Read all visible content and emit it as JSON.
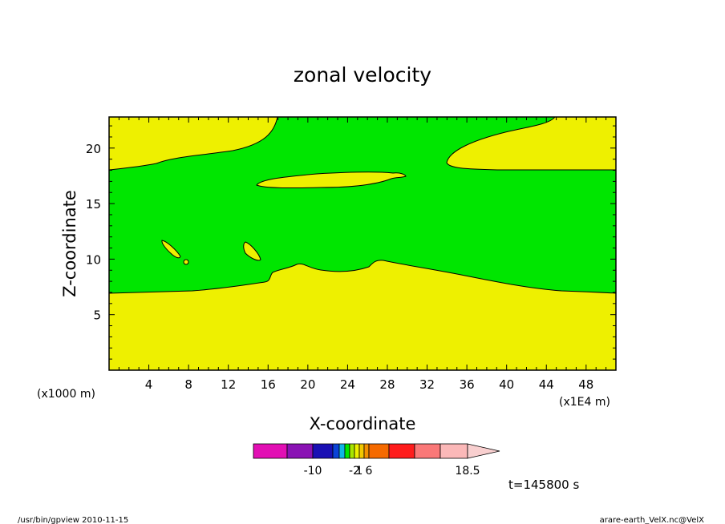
{
  "chart_data": {
    "type": "contour",
    "title": "zonal velocity",
    "xlabel": "X-coordinate",
    "ylabel": "Z-coordinate",
    "x_unit_label": "(x1000 m)",
    "x_scale_label": "(x1E4 m)",
    "xlim": [
      0,
      51
    ],
    "ylim": [
      0,
      22.8
    ],
    "x_ticks": [
      4,
      8,
      12,
      16,
      20,
      24,
      28,
      32,
      36,
      40,
      44,
      48
    ],
    "y_ticks": [
      5,
      10,
      15,
      20
    ],
    "time_label": "t=145800 s",
    "colorbar": {
      "colors": [
        "#e20fb4",
        "#8a12b4",
        "#1a10b4",
        "#0b43d8",
        "#0fb5e5",
        "#00e600",
        "#a8e600",
        "#eef000",
        "#f2c800",
        "#f39000",
        "#f56a00",
        "#ff1c1c",
        "#fa7878",
        "#fbb8b8"
      ],
      "extend_color": "#f8cfcf",
      "labels": [
        "-10",
        "-2",
        "1",
        "6",
        "18.5"
      ],
      "label_positions": [
        2,
        7,
        8,
        10,
        14
      ]
    },
    "regions": [
      {
        "name": "lower-positive",
        "color": "#eef000",
        "description_level": "positive"
      },
      {
        "name": "middle-band",
        "color": "#00e600",
        "description_level": "near-zero"
      }
    ]
  },
  "footer": {
    "left": "/usr/bin/gpview   2010-11-15",
    "right": "arare-earth_VelX.nc@VelX"
  },
  "colors": {
    "yellow": "#eef000",
    "green": "#00e600",
    "frame": "#000000"
  }
}
